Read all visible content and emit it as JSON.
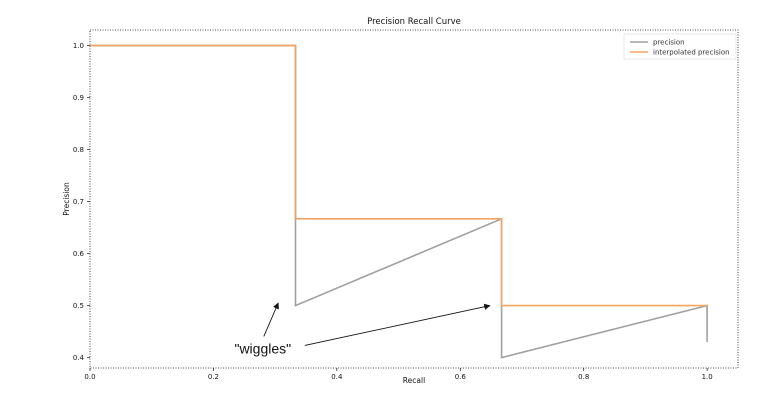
{
  "chart_data": {
    "type": "line",
    "title": "Precision Recall Curve",
    "xlabel": "Recall",
    "ylabel": "Precision",
    "xlim": [
      0.0,
      1.05
    ],
    "ylim": [
      0.38,
      1.03
    ],
    "xticks": [
      0.0,
      0.2,
      0.4,
      0.6,
      0.8,
      1.0
    ],
    "xtick_labels": [
      "0.0",
      "0.2",
      "0.4",
      "0.6",
      "0.8",
      "1.0"
    ],
    "yticks": [
      0.4,
      0.5,
      0.6,
      0.7,
      0.8,
      0.9,
      1.0
    ],
    "ytick_labels": [
      "0.4",
      "0.5",
      "0.6",
      "0.7",
      "0.8",
      "0.9",
      "1.0"
    ],
    "grid": false,
    "legend_position": "top-right",
    "series": [
      {
        "name": "precision",
        "color": "#a0a0a0",
        "points": [
          [
            0.0,
            1.0
          ],
          [
            0.333,
            1.0
          ],
          [
            0.333,
            0.5
          ],
          [
            0.667,
            0.667
          ],
          [
            0.667,
            0.4
          ],
          [
            1.0,
            0.5
          ],
          [
            1.0,
            0.43
          ]
        ]
      },
      {
        "name": "interpolated precision",
        "color": "#f4a460",
        "points": [
          [
            0.0,
            1.0
          ],
          [
            0.333,
            1.0
          ],
          [
            0.333,
            0.667
          ],
          [
            0.667,
            0.667
          ],
          [
            0.667,
            0.5
          ],
          [
            1.0,
            0.5
          ]
        ]
      }
    ],
    "annotations": [
      {
        "text": "\"wiggles\"",
        "text_at": [
          0.28,
          0.408
        ],
        "arrows_to": [
          [
            0.305,
            0.505
          ],
          [
            0.648,
            0.5
          ]
        ]
      }
    ]
  }
}
